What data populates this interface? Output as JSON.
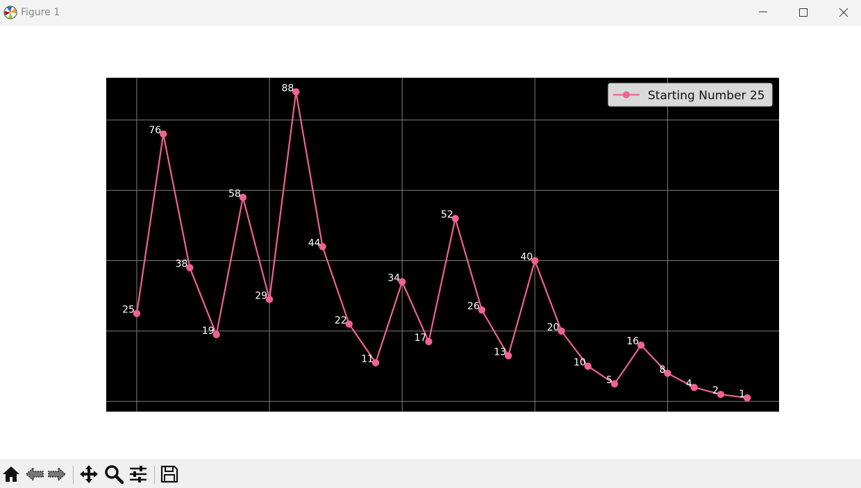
{
  "window": {
    "title": "Figure 1",
    "app_icon": "matplotlib-icon",
    "controls": [
      "minimize-icon",
      "maximize-icon",
      "close-icon"
    ]
  },
  "toolbar": {
    "buttons": [
      "home-icon",
      "back-icon",
      "forward-icon",
      "pan-icon",
      "zoom-icon",
      "configure-subplots-icon",
      "save-icon"
    ]
  },
  "chart_data": {
    "type": "line",
    "x": [
      1,
      2,
      3,
      4,
      5,
      6,
      7,
      8,
      9,
      10,
      11,
      12,
      13,
      14,
      15,
      16,
      17,
      18,
      19,
      20,
      21,
      22,
      23,
      24
    ],
    "series": [
      {
        "name": "Starting Number 25",
        "values": [
          25,
          76,
          38,
          19,
          58,
          29,
          88,
          44,
          22,
          11,
          34,
          17,
          52,
          26,
          13,
          40,
          20,
          10,
          5,
          16,
          8,
          4,
          2,
          1
        ],
        "color": "#f06292",
        "marker": "circle"
      }
    ],
    "data_labels": [
      "25",
      "76",
      "38",
      "19",
      "58",
      "29",
      "88",
      "44",
      "22",
      "11",
      "34",
      "17",
      "52",
      "26",
      "13",
      "40",
      "20",
      "10",
      "5",
      "16",
      "8",
      "4",
      "2",
      "1"
    ],
    "xlim": [
      -0.15,
      25.2
    ],
    "ylim": [
      -2.9,
      92.0
    ],
    "x_gridlines": [
      1,
      6,
      11,
      16,
      21
    ],
    "y_gridlines": [
      0,
      20,
      40,
      60,
      80
    ],
    "grid": true,
    "axes_background": "#000000",
    "grid_color": "#7f7f7f",
    "tick_labels_visible": false,
    "legend_position": "top-right",
    "legend_background": "#d9d9d9"
  }
}
